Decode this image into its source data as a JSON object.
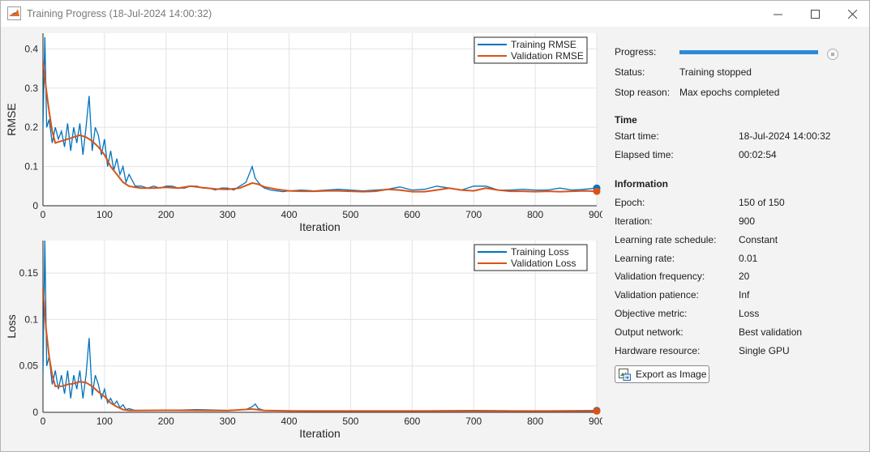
{
  "window": {
    "title": "Training Progress (18-Jul-2024 14:00:32)",
    "controls": [
      "minimize",
      "maximize",
      "close"
    ]
  },
  "status": {
    "progress_label": "Progress:",
    "progress_fraction": 1.0,
    "status_label": "Status:",
    "status_value": "Training stopped",
    "stop_reason_label": "Stop reason:",
    "stop_reason_value": "Max epochs completed"
  },
  "time": {
    "heading": "Time",
    "start_label": "Start time:",
    "start_value": "18-Jul-2024 14:00:32",
    "elapsed_label": "Elapsed time:",
    "elapsed_value": "00:02:54"
  },
  "information": {
    "heading": "Information",
    "rows": [
      {
        "label": "Epoch:",
        "value": "150 of 150"
      },
      {
        "label": "Iteration:",
        "value": "900"
      },
      {
        "label": "Learning rate schedule:",
        "value": "Constant"
      },
      {
        "label": "Learning rate:",
        "value": "0.01"
      },
      {
        "label": "Validation frequency:",
        "value": "20"
      },
      {
        "label": "Validation patience:",
        "value": "Inf"
      },
      {
        "label": "Objective metric:",
        "value": "Loss"
      },
      {
        "label": "Output network:",
        "value": "Best validation"
      },
      {
        "label": "Hardware resource:",
        "value": "Single GPU"
      }
    ]
  },
  "export_button": {
    "label": "Export as Image"
  },
  "colors": {
    "training": "#0072bd",
    "validation": "#d95319",
    "progress": "#2b8ad8"
  },
  "chart_data": [
    {
      "type": "line",
      "ylabel": "RMSE",
      "xlabel": "Iteration",
      "xlim": [
        0,
        900
      ],
      "ylim": [
        0,
        0.44
      ],
      "xticks": [
        "0",
        "100",
        "200",
        "300",
        "400",
        "500",
        "600",
        "700",
        "800",
        "900"
      ],
      "yticks": [
        "0",
        "0.1",
        "0.2",
        "0.3",
        "0.4"
      ],
      "grid": true,
      "legend_position": "top-right",
      "series": [
        {
          "name": "Training RMSE",
          "x": [
            0,
            3,
            6,
            10,
            15,
            20,
            25,
            30,
            35,
            40,
            45,
            50,
            55,
            60,
            65,
            70,
            75,
            80,
            85,
            90,
            95,
            100,
            105,
            110,
            115,
            120,
            125,
            130,
            135,
            140,
            150,
            160,
            170,
            180,
            190,
            200,
            210,
            220,
            230,
            240,
            250,
            260,
            270,
            280,
            290,
            300,
            310,
            320,
            330,
            335,
            340,
            345,
            350,
            355,
            360,
            370,
            380,
            390,
            400,
            420,
            440,
            460,
            480,
            500,
            520,
            540,
            560,
            580,
            600,
            620,
            640,
            660,
            680,
            700,
            720,
            740,
            760,
            780,
            800,
            820,
            840,
            860,
            880,
            900
          ],
          "y": [
            0.2,
            0.43,
            0.2,
            0.22,
            0.16,
            0.2,
            0.17,
            0.19,
            0.15,
            0.21,
            0.14,
            0.2,
            0.16,
            0.21,
            0.13,
            0.2,
            0.28,
            0.14,
            0.2,
            0.18,
            0.13,
            0.17,
            0.1,
            0.14,
            0.09,
            0.12,
            0.08,
            0.1,
            0.06,
            0.08,
            0.05,
            0.05,
            0.045,
            0.05,
            0.045,
            0.05,
            0.05,
            0.045,
            0.045,
            0.05,
            0.05,
            0.045,
            0.045,
            0.04,
            0.045,
            0.045,
            0.04,
            0.05,
            0.06,
            0.08,
            0.1,
            0.07,
            0.06,
            0.05,
            0.045,
            0.04,
            0.038,
            0.036,
            0.038,
            0.04,
            0.038,
            0.04,
            0.042,
            0.04,
            0.038,
            0.04,
            0.042,
            0.048,
            0.04,
            0.042,
            0.05,
            0.045,
            0.04,
            0.05,
            0.05,
            0.04,
            0.04,
            0.042,
            0.04,
            0.04,
            0.045,
            0.04,
            0.042,
            0.045
          ]
        },
        {
          "name": "Validation RMSE",
          "x": [
            0,
            5,
            10,
            15,
            20,
            30,
            40,
            50,
            60,
            70,
            80,
            90,
            100,
            110,
            120,
            130,
            140,
            150,
            160,
            180,
            200,
            220,
            240,
            260,
            280,
            300,
            320,
            340,
            350,
            360,
            380,
            400,
            420,
            440,
            460,
            480,
            500,
            520,
            540,
            560,
            580,
            600,
            620,
            640,
            660,
            680,
            700,
            720,
            740,
            760,
            780,
            800,
            820,
            840,
            860,
            880,
            900
          ],
          "y": [
            0.37,
            0.3,
            0.24,
            0.19,
            0.16,
            0.165,
            0.17,
            0.175,
            0.18,
            0.175,
            0.165,
            0.15,
            0.13,
            0.1,
            0.08,
            0.06,
            0.05,
            0.047,
            0.045,
            0.045,
            0.047,
            0.045,
            0.05,
            0.046,
            0.043,
            0.042,
            0.045,
            0.058,
            0.055,
            0.048,
            0.042,
            0.038,
            0.037,
            0.037,
            0.038,
            0.038,
            0.037,
            0.036,
            0.037,
            0.042,
            0.04,
            0.036,
            0.036,
            0.04,
            0.045,
            0.04,
            0.038,
            0.045,
            0.04,
            0.037,
            0.037,
            0.036,
            0.037,
            0.036,
            0.037,
            0.038,
            0.037
          ]
        }
      ]
    },
    {
      "type": "line",
      "ylabel": "Loss",
      "xlabel": "Iteration",
      "xlim": [
        0,
        900
      ],
      "ylim": [
        0,
        0.185
      ],
      "xticks": [
        "0",
        "100",
        "200",
        "300",
        "400",
        "500",
        "600",
        "700",
        "800",
        "900"
      ],
      "yticks": [
        "0",
        "0.05",
        "0.1",
        "0.15"
      ],
      "grid": true,
      "legend_position": "top-right",
      "series": [
        {
          "name": "Training Loss",
          "x": [
            0,
            3,
            6,
            10,
            15,
            20,
            25,
            30,
            35,
            40,
            45,
            50,
            55,
            60,
            65,
            70,
            75,
            80,
            85,
            90,
            95,
            100,
            105,
            110,
            115,
            120,
            125,
            130,
            135,
            140,
            150,
            200,
            250,
            300,
            330,
            340,
            345,
            350,
            360,
            400,
            500,
            600,
            700,
            800,
            900
          ],
          "y": [
            0.04,
            0.185,
            0.05,
            0.06,
            0.03,
            0.045,
            0.025,
            0.04,
            0.02,
            0.045,
            0.015,
            0.04,
            0.025,
            0.045,
            0.015,
            0.04,
            0.08,
            0.018,
            0.04,
            0.03,
            0.015,
            0.025,
            0.01,
            0.015,
            0.008,
            0.012,
            0.005,
            0.008,
            0.003,
            0.004,
            0.002,
            0.002,
            0.003,
            0.002,
            0.003,
            0.006,
            0.009,
            0.004,
            0.002,
            0.0015,
            0.0015,
            0.0015,
            0.002,
            0.0015,
            0.002
          ]
        },
        {
          "name": "Validation Loss",
          "x": [
            0,
            5,
            10,
            15,
            20,
            30,
            40,
            50,
            60,
            70,
            80,
            90,
            100,
            110,
            120,
            130,
            140,
            150,
            200,
            300,
            340,
            360,
            400,
            500,
            600,
            700,
            800,
            900
          ],
          "y": [
            0.135,
            0.09,
            0.06,
            0.04,
            0.028,
            0.028,
            0.03,
            0.031,
            0.033,
            0.032,
            0.028,
            0.022,
            0.017,
            0.01,
            0.006,
            0.003,
            0.002,
            0.002,
            0.0022,
            0.0018,
            0.0035,
            0.002,
            0.0015,
            0.0014,
            0.0014,
            0.0016,
            0.0014,
            0.0014
          ]
        }
      ]
    }
  ]
}
